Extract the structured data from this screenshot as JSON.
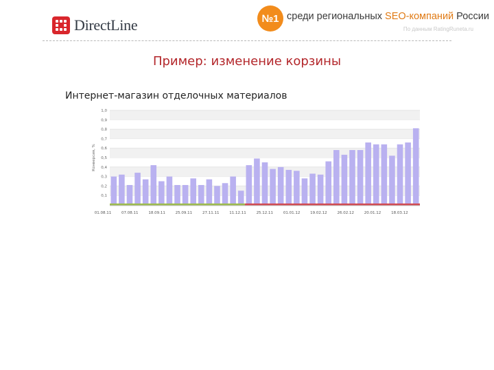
{
  "header": {
    "logo_text": "DirectLine",
    "rank_badge": "№1",
    "tagline_pre": "среди региональных ",
    "tagline_accent": "SEO-компаний",
    "tagline_post": " России",
    "source": "По данным RatingRuneta.ru"
  },
  "slide": {
    "title": "Пример: изменение корзины",
    "subtitle": "Интернет-магазин отделочных материалов"
  },
  "chart_data": {
    "type": "bar",
    "ylabel": "Конверсия, %",
    "ylim": [
      0,
      1.0
    ],
    "yticks": [
      "0,1",
      "0,2",
      "0,3",
      "0,4",
      "0,5",
      "0,6",
      "0,7",
      "0,8",
      "0,9",
      "1,0"
    ],
    "xtick_labels": [
      "01.08.11",
      "07.08.11",
      "18.09.11",
      "25.09.11",
      "27.11.11",
      "11.12.11",
      "25.12.11",
      "01.01.12",
      "19.02.12",
      "26.02.12",
      "20.01.12",
      "18.03.12"
    ],
    "values": [
      0.3,
      0.32,
      0.21,
      0.34,
      0.27,
      0.42,
      0.25,
      0.3,
      0.21,
      0.21,
      0.28,
      0.21,
      0.27,
      0.2,
      0.23,
      0.3,
      0.15,
      0.42,
      0.49,
      0.45,
      0.38,
      0.4,
      0.37,
      0.36,
      0.28,
      0.33,
      0.32,
      0.46,
      0.58,
      0.53,
      0.58,
      0.58,
      0.66,
      0.64,
      0.64,
      0.52,
      0.64,
      0.66,
      0.81
    ],
    "baseline_segments": [
      {
        "name": "before",
        "color": "#9dbb4e",
        "from_index": 0,
        "to_index": 16
      },
      {
        "name": "after",
        "color": "#d24a52",
        "from_index": 17,
        "to_index": 38
      }
    ],
    "bar_color": "#b9b1f0",
    "grid": true
  }
}
